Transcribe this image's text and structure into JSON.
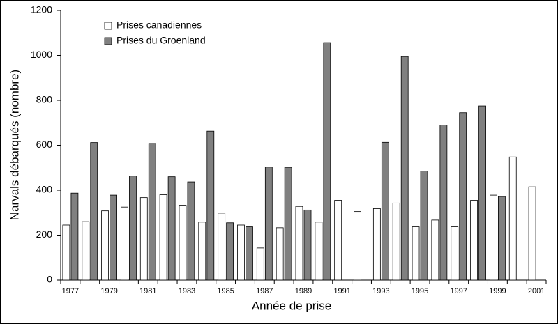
{
  "chart_data": {
    "type": "bar",
    "x_label": "Année de prise",
    "y_label": "Narvals débarqués (nombre)",
    "categories": [
      "1977",
      null,
      "1979",
      null,
      "1981",
      null,
      "1983",
      null,
      "1985",
      null,
      "1987",
      null,
      "1989",
      null,
      "1991",
      null,
      "1993",
      null,
      "1995",
      null,
      "1997",
      null,
      "1999",
      null,
      "2001"
    ],
    "series": [
      {
        "name": "Prises canadiennes",
        "color": "#ffffff",
        "values": [
          245,
          260,
          308,
          325,
          367,
          380,
          333,
          258,
          298,
          245,
          143,
          233,
          328,
          258,
          355,
          305,
          318,
          343,
          237,
          267,
          237,
          355,
          378,
          548,
          415
        ]
      },
      {
        "name": "Prises du Groenland",
        "color": "#808080",
        "values": [
          387,
          612,
          378,
          463,
          608,
          460,
          437,
          663,
          255,
          237,
          503,
          502,
          312,
          1057,
          null,
          null,
          613,
          995,
          485,
          690,
          745,
          775,
          372,
          null,
          null
        ]
      }
    ],
    "ylim": [
      0,
      1200
    ],
    "yticks": [
      0,
      200,
      400,
      600,
      800,
      1000,
      1200
    ],
    "grid": false,
    "legend": "top-left"
  }
}
